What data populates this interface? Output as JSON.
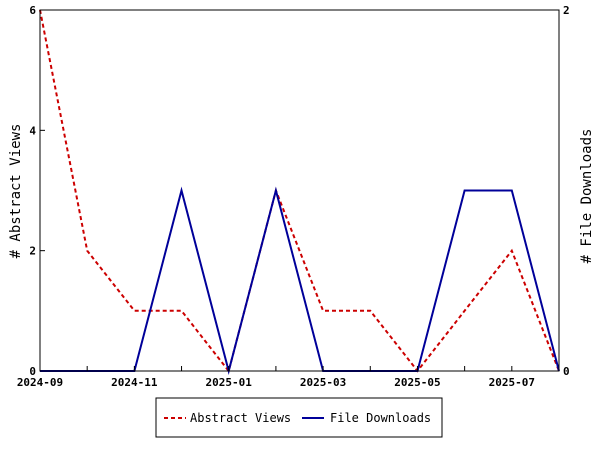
{
  "chart_data": {
    "type": "line",
    "title": "",
    "xlabel": "",
    "ylabel_left": "# Abstract Views",
    "ylabel_right": "# File Downloads",
    "x": [
      "2024-09",
      "2024-10",
      "2024-11",
      "2024-12",
      "2025-01",
      "2025-02",
      "2025-03",
      "2025-04",
      "2025-05",
      "2025-06",
      "2025-07",
      "2025-08"
    ],
    "x_tick_labels": [
      "2024-09",
      "2024-11",
      "2025-01",
      "2025-03",
      "2025-05",
      "2025-07"
    ],
    "ylim_left": [
      0,
      6
    ],
    "ylim_right": [
      0,
      2
    ],
    "y_ticks_left": [
      "0",
      "2",
      "4",
      "6"
    ],
    "y_ticks_right": [
      "0",
      "2"
    ],
    "grid": false,
    "legend_position": "bottom",
    "series": [
      {
        "name": "Abstract Views",
        "axis": "left",
        "color": "#cc0000",
        "dash": true,
        "values": [
          6,
          2,
          1,
          1,
          0,
          3,
          1,
          1,
          0,
          1,
          2,
          0
        ]
      },
      {
        "name": "File Downloads",
        "axis": "right",
        "color": "#000099",
        "dash": false,
        "values": [
          0,
          0,
          0,
          1,
          0,
          1,
          0,
          0,
          0,
          1,
          1,
          0
        ]
      }
    ]
  }
}
